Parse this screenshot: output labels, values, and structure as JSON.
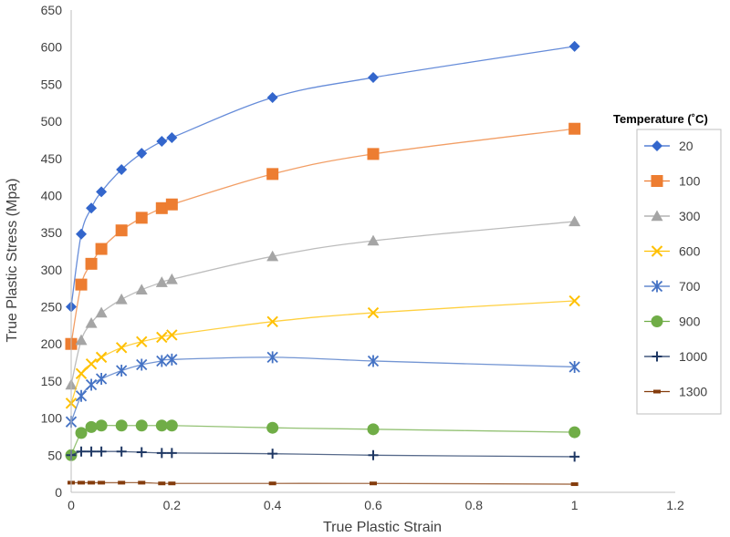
{
  "chart_data": {
    "type": "line",
    "title": "",
    "xlabel": "True Plastic Strain",
    "ylabel": "True Plastic Stress (Mpa)",
    "xlim": [
      0,
      1.2
    ],
    "ylim": [
      0,
      650
    ],
    "xticks": [
      0,
      0.2,
      0.4,
      0.6,
      0.8,
      1,
      1.2
    ],
    "xtick_labels": [
      "0",
      "0.2",
      "0.4",
      "0.6",
      "0.8",
      "1",
      "1.2"
    ],
    "yticks": [
      0,
      50,
      100,
      150,
      200,
      250,
      300,
      350,
      400,
      450,
      500,
      550,
      600,
      650
    ],
    "ytick_labels": [
      "0",
      "50",
      "100",
      "150",
      "200",
      "250",
      "300",
      "350",
      "400",
      "450",
      "500",
      "550",
      "600",
      "650"
    ],
    "grid": false,
    "legend_title": "Temperature (˚C)",
    "legend_position": "right",
    "x": [
      0,
      0.02,
      0.04,
      0.06,
      0.1,
      0.14,
      0.18,
      0.2,
      0.4,
      0.6,
      1
    ],
    "series": [
      {
        "name": "20",
        "color": "#3366cc",
        "marker": "diamond",
        "values": [
          250,
          348,
          383,
          405,
          435,
          457,
          473,
          478,
          532,
          559,
          601
        ]
      },
      {
        "name": "100",
        "color": "#ed7d31",
        "marker": "square",
        "values": [
          200,
          280,
          308,
          328,
          353,
          370,
          383,
          388,
          429,
          456,
          490
        ]
      },
      {
        "name": "300",
        "color": "#a5a5a5",
        "marker": "triangle",
        "values": [
          145,
          205,
          228,
          242,
          260,
          273,
          283,
          287,
          318,
          339,
          365
        ]
      },
      {
        "name": "600",
        "color": "#ffc000",
        "marker": "x",
        "values": [
          120,
          160,
          173,
          182,
          195,
          203,
          209,
          212,
          230,
          242,
          258
        ]
      },
      {
        "name": "700",
        "color": "#4472c4",
        "marker": "star",
        "values": [
          95,
          130,
          145,
          153,
          164,
          172,
          177,
          179,
          182,
          177,
          169
        ]
      },
      {
        "name": "900",
        "color": "#70ad47",
        "marker": "circle",
        "values": [
          50,
          80,
          88,
          90,
          90,
          90,
          90,
          90,
          87,
          85,
          81
        ]
      },
      {
        "name": "1000",
        "color": "#1f3864",
        "marker": "plus",
        "values": [
          50,
          55,
          55,
          55,
          55,
          54,
          53,
          53,
          52,
          50,
          48
        ]
      },
      {
        "name": "1300",
        "color": "#843c0c",
        "marker": "dash",
        "values": [
          13,
          13,
          13,
          13,
          13,
          13,
          12,
          12,
          12,
          12,
          11
        ]
      }
    ]
  }
}
